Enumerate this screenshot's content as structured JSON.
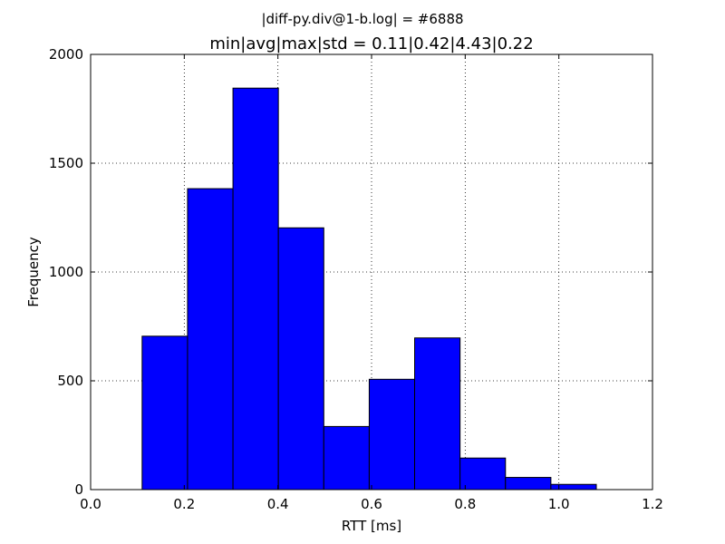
{
  "chart_data": {
    "type": "bar",
    "suptitle": "|diff-py.div@1-b.log| = #6888",
    "title": "min|avg|max|std = 0.11|0.42|4.43|0.22",
    "xlabel": "RTT [ms]",
    "ylabel": "Frequency",
    "xlim": [
      0.0,
      1.2
    ],
    "ylim": [
      0,
      2000
    ],
    "xticks": [
      "0.0",
      "0.2",
      "0.4",
      "0.6",
      "0.8",
      "1.0",
      "1.2"
    ],
    "yticks": [
      "0",
      "500",
      "1000",
      "1500",
      "2000"
    ],
    "grid": true,
    "bar_color": "#0000ff",
    "bins": [
      {
        "x0": 0.11,
        "x1": 0.207,
        "count": 705
      },
      {
        "x0": 0.207,
        "x1": 0.304,
        "count": 1383
      },
      {
        "x0": 0.304,
        "x1": 0.401,
        "count": 1845
      },
      {
        "x0": 0.401,
        "x1": 0.498,
        "count": 1203
      },
      {
        "x0": 0.498,
        "x1": 0.595,
        "count": 290
      },
      {
        "x0": 0.595,
        "x1": 0.692,
        "count": 507
      },
      {
        "x0": 0.692,
        "x1": 0.789,
        "count": 697
      },
      {
        "x0": 0.789,
        "x1": 0.886,
        "count": 145
      },
      {
        "x0": 0.886,
        "x1": 0.983,
        "count": 56
      },
      {
        "x0": 0.983,
        "x1": 1.08,
        "count": 24
      }
    ]
  }
}
